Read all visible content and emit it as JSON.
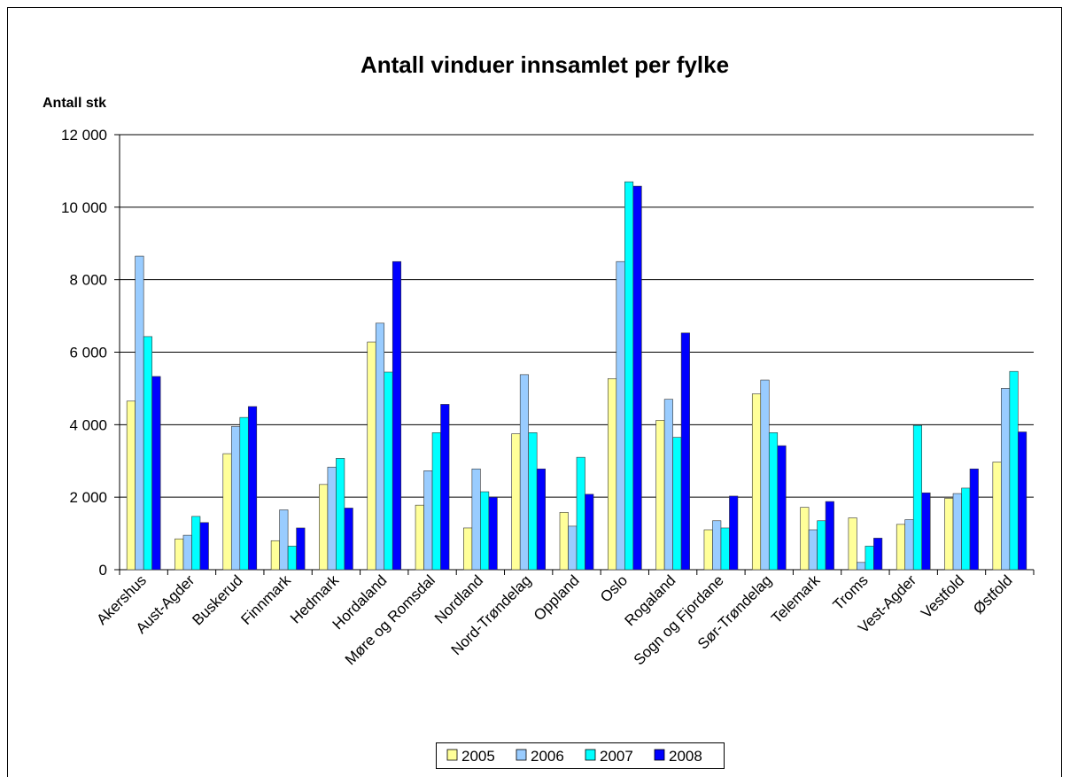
{
  "chart_data": {
    "type": "bar",
    "title": "Antall vinduer innsamlet per fylke",
    "y_label": "Antall stk",
    "categories": [
      "Akershus",
      "Aust-Agder",
      "Buskerud",
      "Finnmark",
      "Hedmark",
      "Hordaland",
      "Møre og Romsdal",
      "Nordland",
      "Nord-Trøndelag",
      "Oppland",
      "Oslo",
      "Rogaland",
      "Sogn og Fjordane",
      "Sør-Trøndelag",
      "Telemark",
      "Troms",
      "Vest-Agder",
      "Vestfold",
      "Østfold"
    ],
    "series": [
      {
        "name": "2005",
        "color": "#ffff99",
        "values": [
          4650,
          850,
          3200,
          800,
          2350,
          6280,
          1780,
          1150,
          3750,
          1580,
          5270,
          4120,
          1100,
          4850,
          1720,
          1430,
          1250,
          1970,
          2970
        ]
      },
      {
        "name": "2006",
        "color": "#99ccff",
        "values": [
          8650,
          950,
          3950,
          1650,
          2830,
          6800,
          2730,
          2780,
          5380,
          1200,
          8500,
          4700,
          1350,
          5230,
          1100,
          200,
          1380,
          2100,
          5000
        ]
      },
      {
        "name": "2007",
        "color": "#00ffff",
        "values": [
          6430,
          1470,
          4200,
          650,
          3070,
          5450,
          3780,
          2150,
          3780,
          3100,
          10700,
          3650,
          1150,
          3780,
          1350,
          650,
          3980,
          2250,
          5470
        ]
      },
      {
        "name": "2008",
        "color": "#0000ff",
        "values": [
          5330,
          1300,
          4500,
          1150,
          1700,
          8500,
          4560,
          2000,
          2780,
          2080,
          10580,
          6530,
          2030,
          3420,
          1880,
          870,
          2120,
          2780,
          3800
        ]
      }
    ],
    "ylim": [
      0,
      12000
    ],
    "yticks": [
      0,
      {
        "value": 2000,
        "label": "2 000"
      },
      {
        "value": 4000,
        "label": "4 000"
      },
      {
        "value": 6000,
        "label": "6 000"
      },
      {
        "value": 8000,
        "label": "8 000"
      },
      {
        "value": 10000,
        "label": "10 000"
      },
      {
        "value": 12000,
        "label": "12 000"
      }
    ],
    "grid": true,
    "legend": "bottom"
  }
}
